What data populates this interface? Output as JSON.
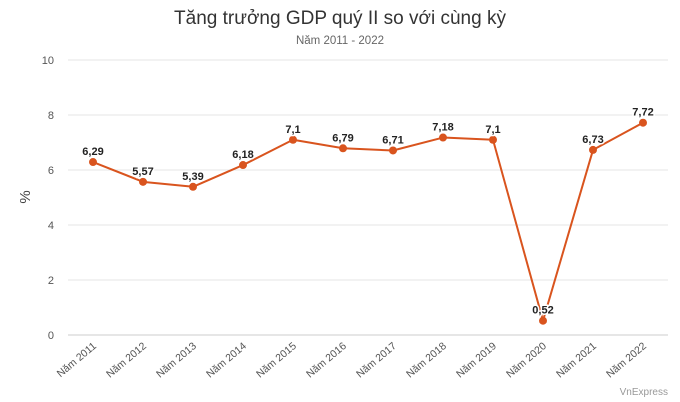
{
  "chart_data": {
    "type": "line",
    "title": "Tăng trưởng GDP quý II so với cùng kỳ",
    "subtitle": "Năm 2011 - 2022",
    "ylabel": "%",
    "xlabel": "",
    "ylim": [
      0,
      10
    ],
    "yticks": [
      "0",
      "2",
      "4",
      "6",
      "8",
      "10"
    ],
    "grid": true,
    "line_color": "#d9541e",
    "categories": [
      "Năm 2011",
      "Năm 2012",
      "Năm 2013",
      "Năm 2014",
      "Năm 2015",
      "Năm 2016",
      "Năm 2017",
      "Năm 2018",
      "Năm 2019",
      "Năm 2020",
      "Năm 2021",
      "Năm 2022"
    ],
    "values": [
      6.29,
      5.57,
      5.39,
      6.18,
      7.1,
      6.79,
      6.71,
      7.18,
      7.1,
      0.52,
      6.73,
      7.72
    ],
    "value_labels": [
      "6,29",
      "5,57",
      "5,39",
      "6,18",
      "7,1",
      "6,79",
      "6,71",
      "7,18",
      "7,1",
      "0,52",
      "6,73",
      "7,72"
    ]
  },
  "source": "VnExpress"
}
